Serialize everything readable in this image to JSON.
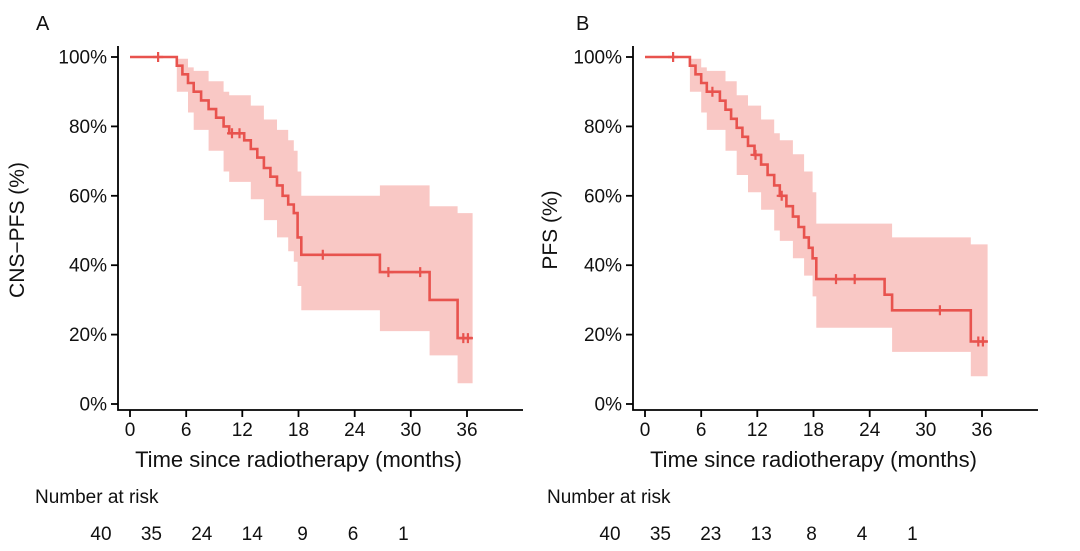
{
  "figure": {
    "background": "#ffffff",
    "description": "Two-panel Kaplan-Meier survival plot with 95% confidence bands and number-at-risk tables"
  },
  "chart_data": [
    {
      "type": "line",
      "subtype": "kaplan-meier-step",
      "panel_label": "A",
      "ylabel": "CNS−PFS (%)",
      "xlabel": "Time since radiotherapy (months)",
      "x_ticks": [
        0,
        6,
        12,
        18,
        24,
        30,
        36
      ],
      "y_tick_values": [
        0,
        20,
        40,
        60,
        80,
        100
      ],
      "y_tick_labels": [
        "0%",
        "20%",
        "40%",
        "60%",
        "80%",
        "100%"
      ],
      "xlim": [
        0,
        39
      ],
      "ylim": [
        0,
        100
      ],
      "end_time": 36.6,
      "line_color": "#e8534e",
      "band_color": "#f9c8c5",
      "steps": [
        [
          0,
          100
        ],
        [
          5,
          97.5
        ],
        [
          5.6,
          95
        ],
        [
          6.2,
          92.5
        ],
        [
          6.8,
          90
        ],
        [
          7.6,
          87.5
        ],
        [
          8.4,
          85
        ],
        [
          9.2,
          82.5
        ],
        [
          10,
          80
        ],
        [
          10.6,
          78
        ],
        [
          12.2,
          76
        ],
        [
          12.9,
          73.5
        ],
        [
          13.6,
          71
        ],
        [
          14.3,
          68
        ],
        [
          15,
          65.5
        ],
        [
          15.7,
          63
        ],
        [
          16.3,
          60
        ],
        [
          16.9,
          57.5
        ],
        [
          17.5,
          55
        ],
        [
          17.9,
          48
        ],
        [
          18.3,
          43
        ],
        [
          26.7,
          38
        ],
        [
          32,
          30
        ],
        [
          35,
          19
        ]
      ],
      "censor_times": [
        3,
        10.9,
        11.7,
        20.6,
        27.6,
        31,
        35.6,
        36.1
      ],
      "ci_steps": [
        [
          0,
          100,
          100
        ],
        [
          5,
          90,
          99.5
        ],
        [
          6.2,
          84,
          97
        ],
        [
          6.8,
          79,
          96
        ],
        [
          8.4,
          73,
          93
        ],
        [
          10,
          67,
          90
        ],
        [
          10.6,
          64,
          89
        ],
        [
          12.9,
          59,
          86
        ],
        [
          14.3,
          53,
          82
        ],
        [
          15.7,
          48,
          79
        ],
        [
          16.9,
          44,
          76
        ],
        [
          17.5,
          41,
          73
        ],
        [
          17.9,
          34,
          67
        ],
        [
          18.3,
          27,
          60
        ],
        [
          26.7,
          21,
          63
        ],
        [
          32,
          14,
          57
        ],
        [
          35,
          6,
          55
        ]
      ],
      "risk_label": "Number at risk",
      "risk_counts": [
        40,
        35,
        24,
        14,
        9,
        6,
        1
      ]
    },
    {
      "type": "line",
      "subtype": "kaplan-meier-step",
      "panel_label": "B",
      "ylabel": "PFS (%)",
      "xlabel": "Time since radiotherapy (months)",
      "x_ticks": [
        0,
        6,
        12,
        18,
        24,
        30,
        36
      ],
      "y_tick_values": [
        0,
        20,
        40,
        60,
        80,
        100
      ],
      "y_tick_labels": [
        "0%",
        "20%",
        "40%",
        "60%",
        "80%",
        "100%"
      ],
      "xlim": [
        0,
        39
      ],
      "ylim": [
        0,
        100
      ],
      "end_time": 36.6,
      "line_color": "#e8534e",
      "band_color": "#f9c8c5",
      "steps": [
        [
          0,
          100
        ],
        [
          4.8,
          97.5
        ],
        [
          5.4,
          95
        ],
        [
          6,
          92.5
        ],
        [
          6.6,
          90
        ],
        [
          8,
          87.4
        ],
        [
          8.6,
          84.8
        ],
        [
          9.2,
          82.2
        ],
        [
          9.8,
          79.6
        ],
        [
          10.4,
          77
        ],
        [
          11,
          74.4
        ],
        [
          11.7,
          71.8
        ],
        [
          12.4,
          69
        ],
        [
          13.1,
          66
        ],
        [
          13.8,
          63
        ],
        [
          14.4,
          60
        ],
        [
          15.1,
          57
        ],
        [
          15.8,
          54
        ],
        [
          16.4,
          51
        ],
        [
          17,
          48
        ],
        [
          17.5,
          45
        ],
        [
          17.9,
          42
        ],
        [
          18.3,
          36
        ],
        [
          25.6,
          31.5
        ],
        [
          26.4,
          27
        ],
        [
          34.8,
          18
        ]
      ],
      "censor_times": [
        3,
        7.2,
        11.8,
        14.6,
        20.4,
        22.4,
        31.5,
        35.6,
        36.1
      ],
      "ci_steps": [
        [
          0,
          100,
          100
        ],
        [
          4.8,
          90,
          99.5
        ],
        [
          6,
          84,
          97
        ],
        [
          6.6,
          79,
          96
        ],
        [
          8.6,
          73,
          93
        ],
        [
          9.8,
          66,
          89
        ],
        [
          11,
          61,
          86
        ],
        [
          12.4,
          56,
          82
        ],
        [
          13.8,
          50,
          78
        ],
        [
          14.4,
          47,
          76
        ],
        [
          15.8,
          42,
          72
        ],
        [
          17,
          37,
          67
        ],
        [
          17.9,
          31,
          61
        ],
        [
          18.3,
          22,
          52
        ],
        [
          26.4,
          15,
          48
        ],
        [
          34.8,
          8,
          46
        ]
      ],
      "risk_label": "Number at risk",
      "risk_counts": [
        40,
        35,
        23,
        13,
        8,
        4,
        1
      ]
    }
  ]
}
